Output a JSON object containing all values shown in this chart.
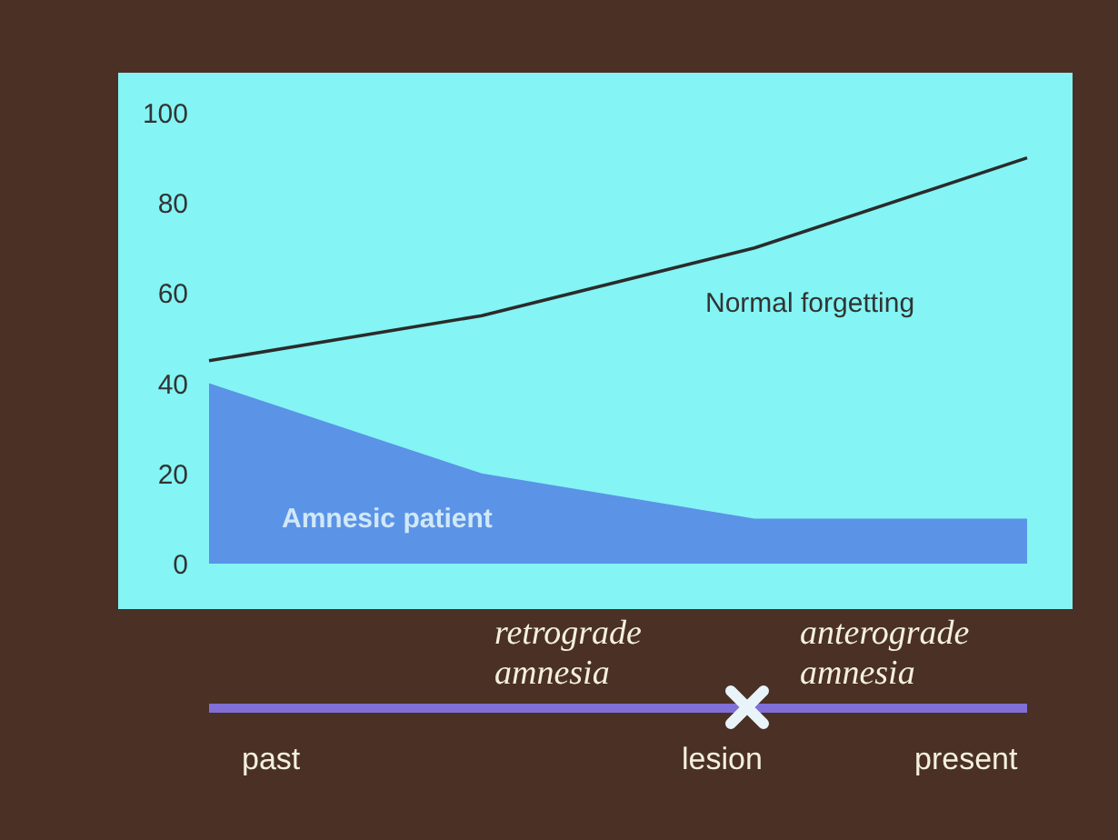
{
  "chart_data": {
    "type": "line",
    "categories": [
      null,
      null,
      null,
      null
    ],
    "ylim": [
      0,
      100
    ],
    "yticks": [
      0,
      20,
      40,
      60,
      80,
      100
    ],
    "grid": false,
    "legend": false,
    "tick_labels": "y",
    "series": [
      {
        "name": "Normal forgetting",
        "color": "#2b2b2b",
        "values": [
          45,
          55,
          70,
          90
        ]
      },
      {
        "name": "Amnesic patient",
        "type": "area",
        "color": "#5b93e6",
        "values": [
          40,
          20,
          10,
          10
        ]
      }
    ],
    "annotations": [
      "retrograde amnesia",
      "anterograde amnesia",
      "past",
      "lesion",
      "present"
    ]
  }
}
